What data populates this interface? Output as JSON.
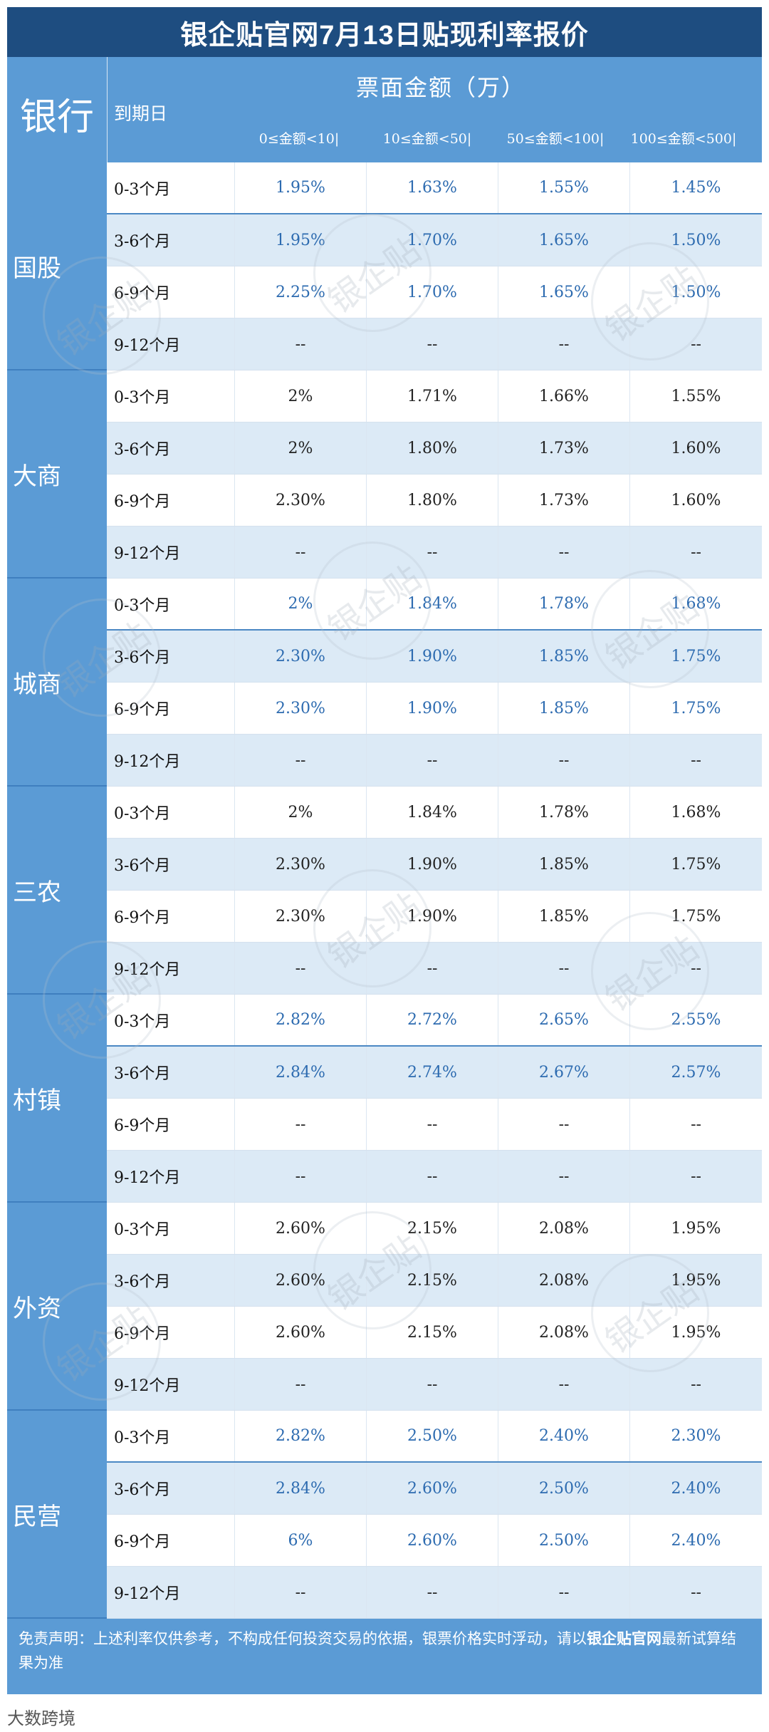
{
  "title": "银企贴官网7月13日贴现利率报价",
  "header": {
    "bank_label": "银行",
    "due_label": "到期日",
    "amount_label": "票面金额（万）",
    "ranges": [
      "0≤金额<10|",
      "10≤金额<50|",
      "50≤金额<100|",
      "100≤金额<500|"
    ]
  },
  "watermark": "银企贴",
  "groups": [
    {
      "name": "国股",
      "rows": [
        {
          "due": "0-3个月",
          "vals": [
            "1.95%",
            "1.63%",
            "1.55%",
            "1.45%"
          ]
        },
        {
          "due": "3-6个月",
          "vals": [
            "1.95%",
            "1.70%",
            "1.65%",
            "1.50%"
          ]
        },
        {
          "due": "6-9个月",
          "vals": [
            "2.25%",
            "1.70%",
            "1.65%",
            "1.50%"
          ]
        },
        {
          "due": "9-12个月",
          "vals": [
            "--",
            "--",
            "--",
            "--"
          ]
        }
      ]
    },
    {
      "name": "大商",
      "rows": [
        {
          "due": "0-3个月",
          "vals": [
            "2%",
            "1.71%",
            "1.66%",
            "1.55%"
          ]
        },
        {
          "due": "3-6个月",
          "vals": [
            "2%",
            "1.80%",
            "1.73%",
            "1.60%"
          ]
        },
        {
          "due": "6-9个月",
          "vals": [
            "2.30%",
            "1.80%",
            "1.73%",
            "1.60%"
          ]
        },
        {
          "due": "9-12个月",
          "vals": [
            "--",
            "--",
            "--",
            "--"
          ]
        }
      ]
    },
    {
      "name": "城商",
      "rows": [
        {
          "due": "0-3个月",
          "vals": [
            "2%",
            "1.84%",
            "1.78%",
            "1.68%"
          ]
        },
        {
          "due": "3-6个月",
          "vals": [
            "2.30%",
            "1.90%",
            "1.85%",
            "1.75%"
          ]
        },
        {
          "due": "6-9个月",
          "vals": [
            "2.30%",
            "1.90%",
            "1.85%",
            "1.75%"
          ]
        },
        {
          "due": "9-12个月",
          "vals": [
            "--",
            "--",
            "--",
            "--"
          ]
        }
      ]
    },
    {
      "name": "三农",
      "rows": [
        {
          "due": "0-3个月",
          "vals": [
            "2%",
            "1.84%",
            "1.78%",
            "1.68%"
          ]
        },
        {
          "due": "3-6个月",
          "vals": [
            "2.30%",
            "1.90%",
            "1.85%",
            "1.75%"
          ]
        },
        {
          "due": "6-9个月",
          "vals": [
            "2.30%",
            "1.90%",
            "1.85%",
            "1.75%"
          ]
        },
        {
          "due": "9-12个月",
          "vals": [
            "--",
            "--",
            "--",
            "--"
          ]
        }
      ]
    },
    {
      "name": "村镇",
      "rows": [
        {
          "due": "0-3个月",
          "vals": [
            "2.82%",
            "2.72%",
            "2.65%",
            "2.55%"
          ]
        },
        {
          "due": "3-6个月",
          "vals": [
            "2.84%",
            "2.74%",
            "2.67%",
            "2.57%"
          ]
        },
        {
          "due": "6-9个月",
          "vals": [
            "--",
            "--",
            "--",
            "--"
          ]
        },
        {
          "due": "9-12个月",
          "vals": [
            "--",
            "--",
            "--",
            "--"
          ]
        }
      ]
    },
    {
      "name": "外资",
      "rows": [
        {
          "due": "0-3个月",
          "vals": [
            "2.60%",
            "2.15%",
            "2.08%",
            "1.95%"
          ]
        },
        {
          "due": "3-6个月",
          "vals": [
            "2.60%",
            "2.15%",
            "2.08%",
            "1.95%"
          ]
        },
        {
          "due": "6-9个月",
          "vals": [
            "2.60%",
            "2.15%",
            "2.08%",
            "1.95%"
          ]
        },
        {
          "due": "9-12个月",
          "vals": [
            "--",
            "--",
            "--",
            "--"
          ]
        }
      ]
    },
    {
      "name": "民营",
      "rows": [
        {
          "due": "0-3个月",
          "vals": [
            "2.82%",
            "2.50%",
            "2.40%",
            "2.30%"
          ]
        },
        {
          "due": "3-6个月",
          "vals": [
            "2.84%",
            "2.60%",
            "2.50%",
            "2.40%"
          ]
        },
        {
          "due": "6-9个月",
          "vals": [
            "6%",
            "2.60%",
            "2.50%",
            "2.40%"
          ]
        },
        {
          "due": "9-12个月",
          "vals": [
            "--",
            "--",
            "--",
            "--"
          ]
        }
      ]
    }
  ],
  "footer": {
    "disclaimer_prefix": "免责声明：上述利率仅供参考，不构成任何投资交易的依据，银票价格实时浮动，请以",
    "disclaimer_brand": "银企贴官网",
    "disclaimer_suffix": "最新试算结果为准"
  },
  "source_brand": "大数跨境"
}
